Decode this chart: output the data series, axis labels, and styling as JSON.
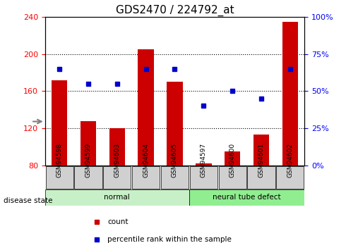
{
  "title": "GDS2470 / 224792_at",
  "samples": [
    "GSM94598",
    "GSM94599",
    "GSM94603",
    "GSM94604",
    "GSM94605",
    "GSM94597",
    "GSM94600",
    "GSM94601",
    "GSM94602"
  ],
  "counts": [
    172,
    128,
    120,
    205,
    170,
    82,
    95,
    113,
    235
  ],
  "percentiles": [
    65,
    55,
    55,
    65,
    65,
    40,
    50,
    45,
    65
  ],
  "groups": [
    {
      "label": "normal",
      "indices": [
        0,
        1,
        2,
        3,
        4
      ],
      "color": "#c8f0c8"
    },
    {
      "label": "neural tube defect",
      "indices": [
        5,
        6,
        7,
        8
      ],
      "color": "#90ee90"
    }
  ],
  "ylim_left": [
    80,
    240
  ],
  "yticks_left": [
    80,
    120,
    160,
    200,
    240
  ],
  "ylim_right": [
    0,
    100
  ],
  "yticks_right": [
    0,
    25,
    50,
    75,
    100
  ],
  "bar_color": "#cc0000",
  "dot_color": "#0000cc",
  "bar_width": 0.55,
  "background_color": "#ffffff",
  "plot_bg": "#ffffff",
  "grid_color": "#000000",
  "title_fontsize": 11,
  "tick_fontsize": 8,
  "label_fontsize": 8,
  "disease_state_label": "disease state",
  "legend_count": "count",
  "legend_percentile": "percentile rank within the sample"
}
